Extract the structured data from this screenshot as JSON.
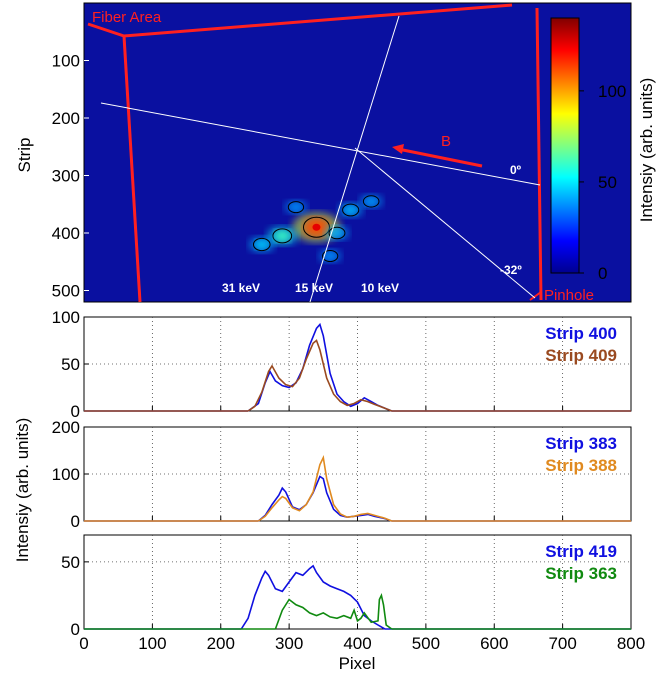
{
  "chart_data": [
    {
      "type": "heatmap",
      "ylabel": "Strip",
      "ylim": [
        0,
        520
      ],
      "xlim": [
        0,
        800
      ],
      "yticks": [
        "100",
        "200",
        "300",
        "400",
        "500"
      ],
      "colorbar": {
        "label": "Intensiy (arb. units)",
        "ticks": [
          "0",
          "50",
          "100"
        ],
        "range": [
          0,
          140
        ]
      },
      "annotations": {
        "fiber_area": "Fiber Area",
        "pinhole": "Pinhole",
        "beam": "B",
        "angle_0": "0º",
        "angle_m32": "-32º",
        "e31": "31 keV",
        "e15": "15 keV",
        "e10": "10 keV"
      },
      "spots": [
        {
          "x": 340,
          "y": 390,
          "v": 140
        },
        {
          "x": 290,
          "y": 405,
          "v": 55
        },
        {
          "x": 260,
          "y": 420,
          "v": 30
        },
        {
          "x": 390,
          "y": 360,
          "v": 25
        },
        {
          "x": 420,
          "y": 345,
          "v": 18
        },
        {
          "x": 370,
          "y": 400,
          "v": 22
        },
        {
          "x": 310,
          "y": 355,
          "v": 15
        },
        {
          "x": 360,
          "y": 440,
          "v": 15
        }
      ]
    },
    {
      "type": "line",
      "xlim": [
        0,
        800
      ],
      "ylim": [
        0,
        100
      ],
      "yticks": [
        "0",
        "50",
        "100"
      ],
      "series": [
        {
          "name": "Strip 400",
          "color": "#1010e0",
          "x": [
            240,
            255,
            265,
            272,
            280,
            290,
            300,
            310,
            320,
            330,
            340,
            345,
            350,
            360,
            370,
            380,
            390,
            400,
            410,
            420,
            430,
            440,
            450
          ],
          "y": [
            0,
            8,
            30,
            42,
            32,
            27,
            25,
            30,
            45,
            70,
            88,
            92,
            80,
            40,
            18,
            10,
            5,
            8,
            14,
            10,
            6,
            3,
            0
          ]
        },
        {
          "name": "Strip 409",
          "color": "#9a4a20",
          "x": [
            240,
            250,
            260,
            270,
            275,
            285,
            295,
            305,
            315,
            325,
            335,
            340,
            345,
            355,
            365,
            375,
            385,
            395,
            405,
            415,
            425,
            440,
            450
          ],
          "y": [
            0,
            5,
            20,
            42,
            48,
            35,
            28,
            26,
            35,
            55,
            72,
            75,
            65,
            35,
            18,
            10,
            6,
            8,
            12,
            10,
            7,
            3,
            0
          ]
        }
      ]
    },
    {
      "type": "line",
      "xlim": [
        0,
        800
      ],
      "ylim": [
        0,
        200
      ],
      "yticks": [
        "0",
        "100",
        "200"
      ],
      "series": [
        {
          "name": "Strip 383",
          "color": "#1010e0",
          "x": [
            255,
            265,
            275,
            285,
            290,
            295,
            305,
            315,
            325,
            335,
            345,
            350,
            355,
            365,
            375,
            385,
            395,
            405,
            415,
            425,
            440,
            450
          ],
          "y": [
            0,
            12,
            35,
            55,
            70,
            62,
            30,
            24,
            35,
            60,
            95,
            90,
            60,
            25,
            12,
            8,
            10,
            12,
            14,
            10,
            5,
            0
          ]
        },
        {
          "name": "Strip 388",
          "color": "#e08a20",
          "x": [
            255,
            265,
            275,
            285,
            290,
            295,
            305,
            315,
            325,
            335,
            345,
            350,
            355,
            365,
            375,
            385,
            395,
            405,
            415,
            425,
            440,
            450
          ],
          "y": [
            0,
            10,
            28,
            45,
            52,
            48,
            28,
            22,
            35,
            62,
            120,
            135,
            90,
            35,
            15,
            8,
            10,
            14,
            16,
            12,
            6,
            0
          ]
        }
      ]
    },
    {
      "type": "line",
      "xlabel": "Pixel",
      "ylabel": "Intensiy (arb. units)",
      "xlim": [
        0,
        800
      ],
      "ylim": [
        0,
        70
      ],
      "yticks": [
        "0",
        "50"
      ],
      "xticks": [
        "0",
        "100",
        "200",
        "300",
        "400",
        "500",
        "600",
        "700",
        "800"
      ],
      "series": [
        {
          "name": "Strip 419",
          "color": "#1010e0",
          "x": [
            230,
            240,
            250,
            260,
            265,
            270,
            280,
            290,
            300,
            310,
            320,
            330,
            335,
            340,
            350,
            360,
            370,
            380,
            390,
            400,
            410,
            420,
            430,
            440
          ],
          "y": [
            0,
            8,
            25,
            38,
            43,
            40,
            30,
            28,
            35,
            42,
            40,
            45,
            47,
            42,
            35,
            32,
            30,
            28,
            25,
            20,
            10,
            6,
            3,
            0
          ]
        },
        {
          "name": "Strip 363",
          "color": "#108a10",
          "x": [
            280,
            290,
            300,
            310,
            320,
            330,
            340,
            350,
            360,
            370,
            380,
            390,
            395,
            400,
            405,
            410,
            420,
            430,
            432,
            435,
            438,
            442,
            450
          ],
          "y": [
            0,
            14,
            22,
            18,
            16,
            12,
            10,
            12,
            9,
            8,
            10,
            8,
            14,
            6,
            8,
            12,
            5,
            6,
            22,
            25,
            18,
            3,
            0
          ]
        }
      ]
    }
  ]
}
